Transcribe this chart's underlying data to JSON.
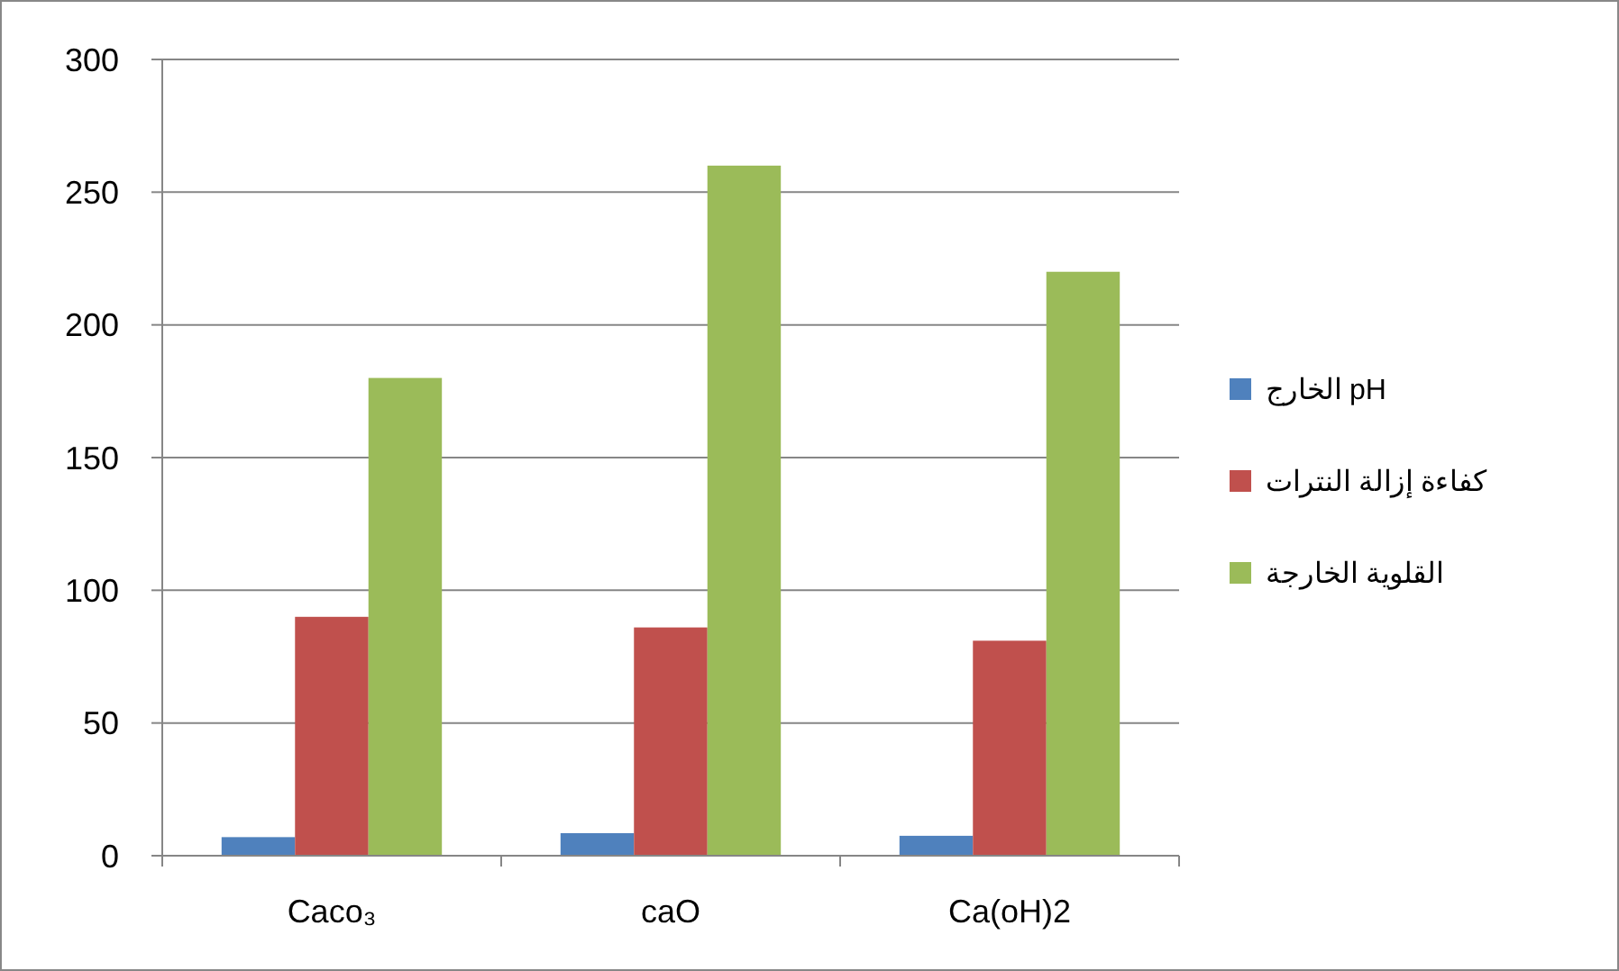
{
  "chart_data": {
    "type": "bar",
    "categories": [
      "Caco₃",
      "caO",
      "Ca(oH)2"
    ],
    "series": [
      {
        "name": "pH الخارج",
        "color": "#4f81bd",
        "values": [
          7,
          8.5,
          7.5
        ]
      },
      {
        "name": "كفاءة إزالة النترات",
        "color": "#c0504d",
        "values": [
          90,
          86,
          81
        ]
      },
      {
        "name": "القلوية الخارجة",
        "color": "#9bbb59",
        "values": [
          180,
          260,
          220
        ]
      }
    ],
    "ylim": [
      0,
      300
    ],
    "yticks": [
      0,
      50,
      100,
      150,
      200,
      250,
      300
    ],
    "grid": "y",
    "legend": "right"
  }
}
